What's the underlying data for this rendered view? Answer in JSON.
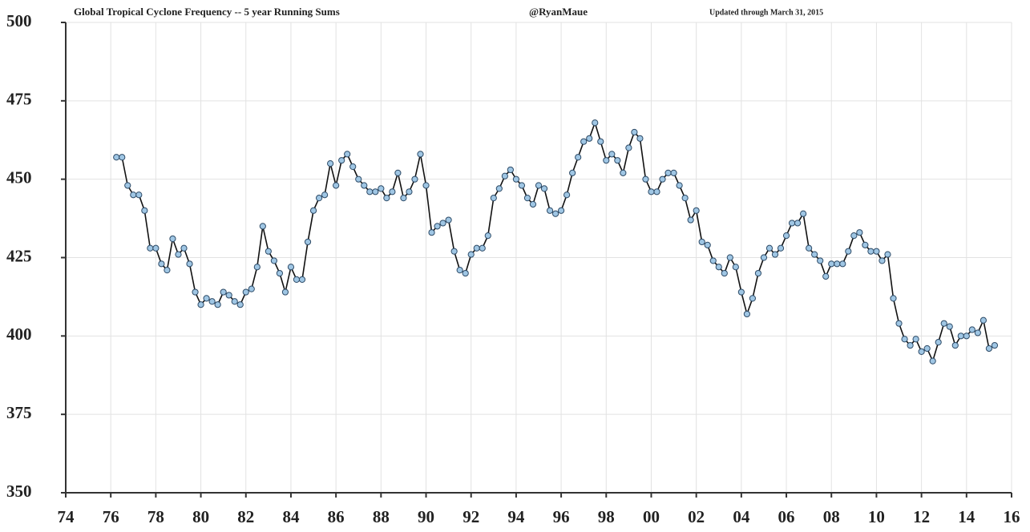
{
  "chart_data": {
    "type": "line",
    "title": "Global Tropical Cyclone Frequency -- 5 year Running Sums",
    "annotations": [
      "@RyanMaue",
      "Updated through March 31, 2015"
    ],
    "x": [
      1976.25,
      1976.5,
      1976.75,
      1977,
      1977.25,
      1977.5,
      1977.75,
      1978,
      1978.25,
      1978.5,
      1978.75,
      1979,
      1979.25,
      1979.5,
      1979.75,
      1980,
      1980.25,
      1980.5,
      1980.75,
      1981,
      1981.25,
      1981.5,
      1981.75,
      1982,
      1982.25,
      1982.5,
      1982.75,
      1983,
      1983.25,
      1983.5,
      1983.75,
      1984,
      1984.25,
      1984.5,
      1984.75,
      1985,
      1985.25,
      1985.5,
      1985.75,
      1986,
      1986.25,
      1986.5,
      1986.75,
      1987,
      1987.25,
      1987.5,
      1987.75,
      1988,
      1988.25,
      1988.5,
      1988.75,
      1989,
      1989.25,
      1989.5,
      1989.75,
      1990,
      1990.25,
      1990.5,
      1990.75,
      1991,
      1991.25,
      1991.5,
      1991.75,
      1992,
      1992.25,
      1992.5,
      1992.75,
      1993,
      1993.25,
      1993.5,
      1993.75,
      1994,
      1994.25,
      1994.5,
      1994.75,
      1995,
      1995.25,
      1995.5,
      1995.75,
      1996,
      1996.25,
      1996.5,
      1996.75,
      1997,
      1997.25,
      1997.5,
      1997.75,
      1998,
      1998.25,
      1998.5,
      1998.75,
      1999,
      1999.25,
      1999.5,
      1999.75,
      2000,
      2000.25,
      2000.5,
      2000.75,
      2001,
      2001.25,
      2001.5,
      2001.75,
      2002,
      2002.25,
      2002.5,
      2002.75,
      2003,
      2003.25,
      2003.5,
      2003.75,
      2004,
      2004.25,
      2004.5,
      2004.75,
      2005,
      2005.25,
      2005.5,
      2005.75,
      2006,
      2006.25,
      2006.5,
      2006.75,
      2007,
      2007.25,
      2007.5,
      2007.75,
      2008,
      2008.25,
      2008.5,
      2008.75,
      2009,
      2009.25,
      2009.5,
      2009.75,
      2010,
      2010.25,
      2010.5,
      2010.75,
      2011,
      2011.25,
      2011.5,
      2011.75,
      2012,
      2012.25,
      2012.5,
      2012.75,
      2013,
      2013.25,
      2013.5,
      2013.75,
      2014,
      2014.25,
      2014.5,
      2014.75,
      2015,
      2015.25
    ],
    "values": [
      457,
      457,
      448,
      445,
      445,
      440,
      428,
      428,
      423,
      421,
      431,
      426,
      428,
      423,
      414,
      410,
      412,
      411,
      410,
      414,
      413,
      411,
      410,
      414,
      415,
      422,
      435,
      427,
      424,
      420,
      414,
      422,
      418,
      418,
      430,
      440,
      444,
      445,
      455,
      448,
      456,
      458,
      454,
      450,
      448,
      446,
      446,
      447,
      444,
      446,
      452,
      444,
      446,
      450,
      458,
      448,
      433,
      435,
      436,
      437,
      427,
      421,
      420,
      426,
      428,
      428,
      432,
      444,
      447,
      451,
      453,
      450,
      448,
      444,
      442,
      448,
      447,
      440,
      439,
      440,
      445,
      452,
      457,
      462,
      463,
      468,
      462,
      456,
      458,
      456,
      452,
      460,
      465,
      463,
      450,
      446,
      446,
      450,
      452,
      452,
      448,
      444,
      437,
      440,
      430,
      429,
      424,
      422,
      420,
      425,
      422,
      414,
      407,
      412,
      420,
      425,
      428,
      426,
      428,
      432,
      436,
      436,
      439,
      428,
      426,
      424,
      419,
      423,
      423,
      423,
      427,
      432,
      433,
      429,
      427,
      427,
      424,
      426,
      412,
      404,
      399,
      397,
      399,
      395,
      396,
      392,
      398,
      404,
      403,
      397,
      400,
      400,
      402,
      401,
      405,
      396,
      397
    ],
    "color": "#111111",
    "marker_color": "#9fc6e4",
    "xlim": [
      1974,
      2016
    ],
    "xticks": [
      {
        "value": 1974,
        "label": "74"
      },
      {
        "value": 1976,
        "label": "76"
      },
      {
        "value": 1978,
        "label": "78"
      },
      {
        "value": 1980,
        "label": "80"
      },
      {
        "value": 1982,
        "label": "82"
      },
      {
        "value": 1984,
        "label": "84"
      },
      {
        "value": 1986,
        "label": "86"
      },
      {
        "value": 1988,
        "label": "88"
      },
      {
        "value": 1990,
        "label": "90"
      },
      {
        "value": 1992,
        "label": "92"
      },
      {
        "value": 1994,
        "label": "94"
      },
      {
        "value": 1996,
        "label": "96"
      },
      {
        "value": 1998,
        "label": "98"
      },
      {
        "value": 2000,
        "label": "00"
      },
      {
        "value": 2002,
        "label": "02"
      },
      {
        "value": 2004,
        "label": "04"
      },
      {
        "value": 2006,
        "label": "06"
      },
      {
        "value": 2008,
        "label": "08"
      },
      {
        "value": 2010,
        "label": "10"
      },
      {
        "value": 2012,
        "label": "12"
      },
      {
        "value": 2014,
        "label": "14"
      },
      {
        "value": 2016,
        "label": "16"
      }
    ],
    "ylim": [
      350,
      500
    ],
    "yticks": [
      350,
      375,
      400,
      425,
      450,
      475,
      500
    ],
    "grid": true
  }
}
